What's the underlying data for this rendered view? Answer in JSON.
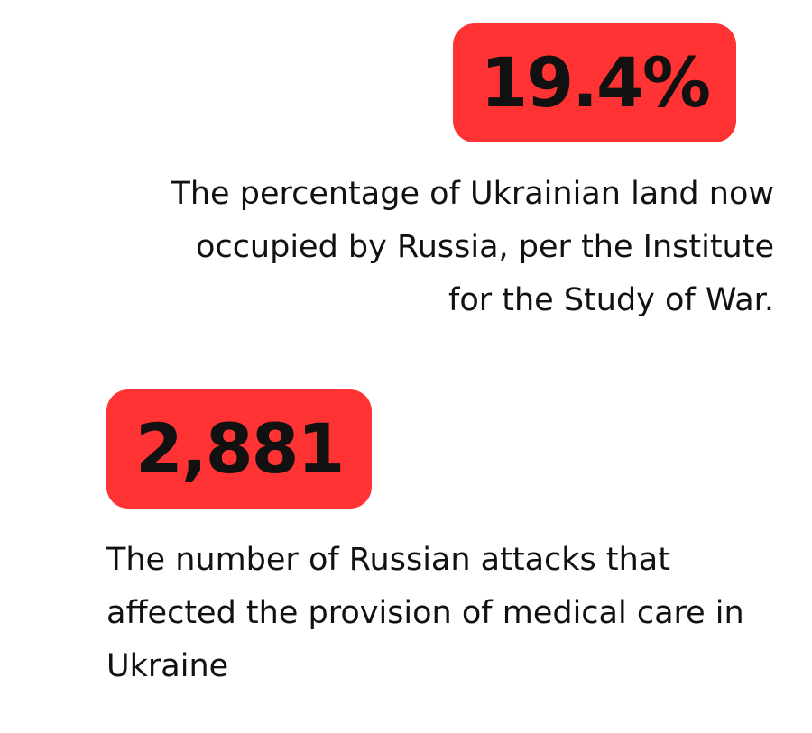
{
  "stats": [
    {
      "value": "19.4%",
      "description": "The percentage of Ukrainian land now occupied by Russia, per the Institute for the Study of War."
    },
    {
      "value": "2,881",
      "description": "The number of Russian attacks that affected the provision of medical care in Ukraine"
    }
  ],
  "colors": {
    "badge": "#ff3333",
    "text": "#111111",
    "background": "#ffffff"
  }
}
